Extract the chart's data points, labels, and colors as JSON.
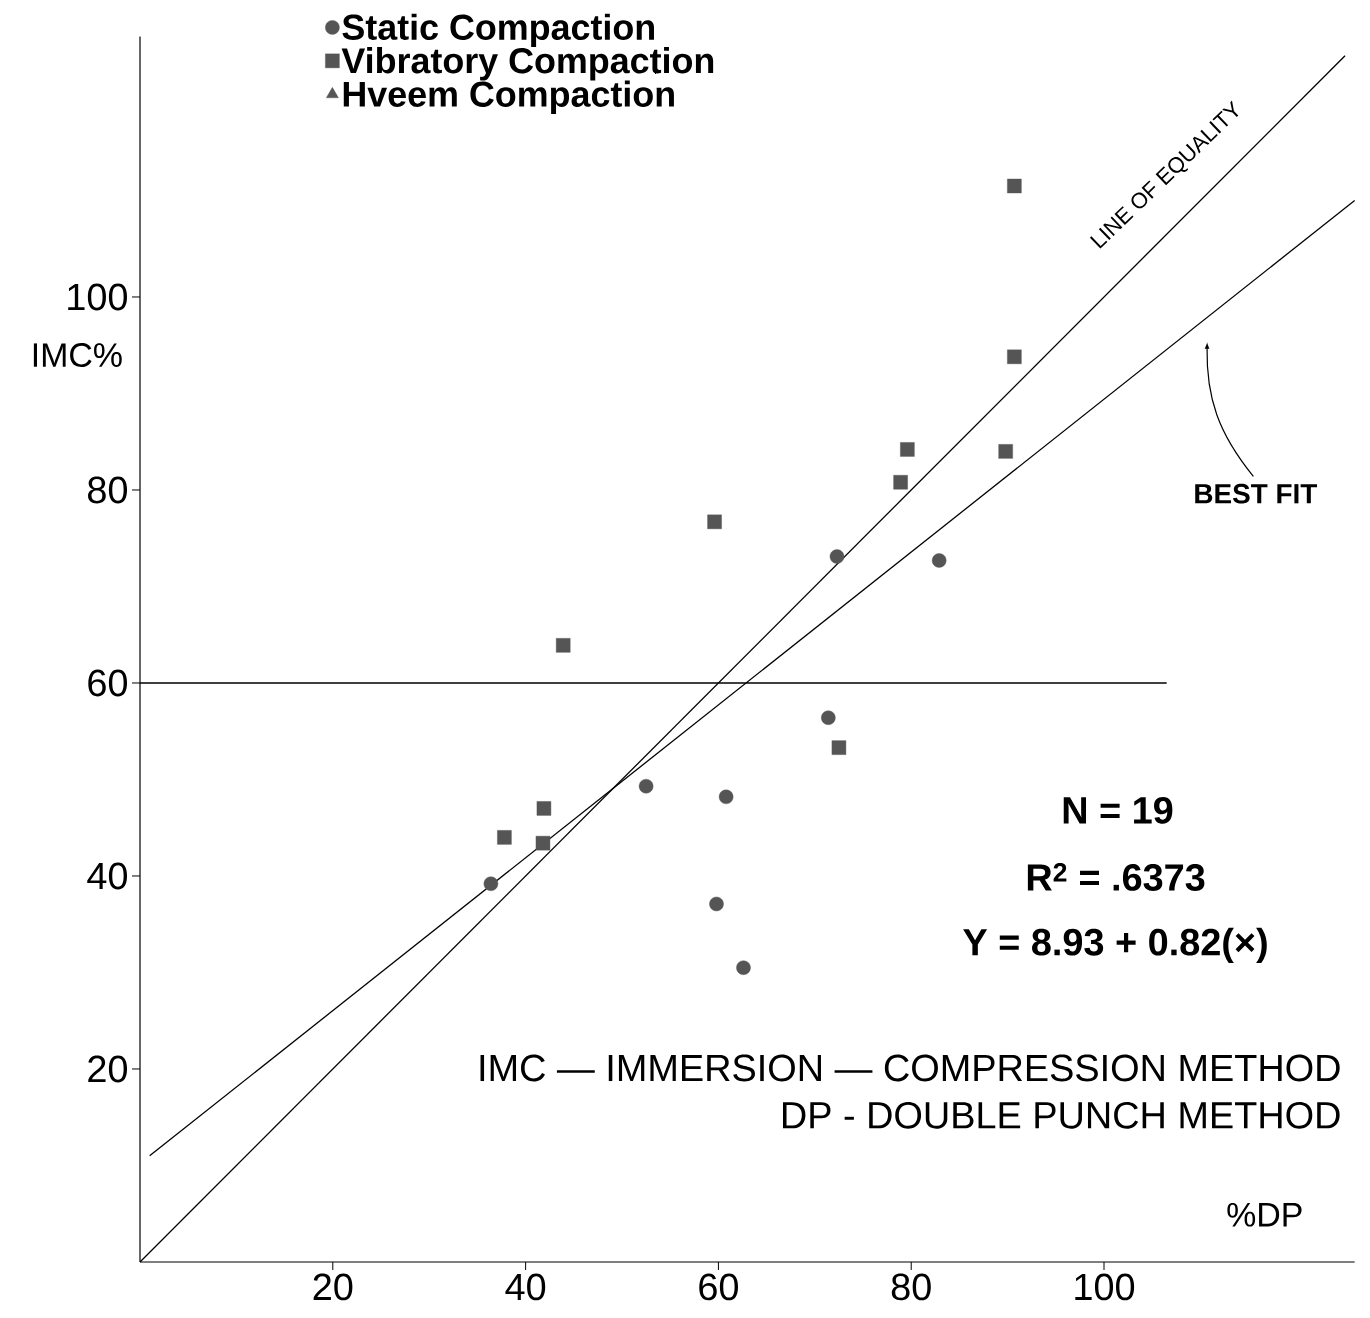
{
  "chart_data": {
    "type": "scatter",
    "xlabel": "%DP",
    "ylabel": "IMC%",
    "xlim": [
      0,
      126
    ],
    "ylim": [
      0,
      127
    ],
    "xticks": [
      20,
      40,
      60,
      80,
      100
    ],
    "yticks": [
      20,
      40,
      60,
      80,
      100
    ],
    "legend": "top",
    "line_style": "solid",
    "series": [
      {
        "name": "Static Compaction",
        "marker": "circle",
        "color": "#555555",
        "x": [
          36.4,
          52.5,
          60.8,
          59.8,
          62.6,
          71.4,
          72.3,
          82.9
        ],
        "values": [
          39.2,
          49.3,
          48.2,
          37.1,
          30.5,
          56.4,
          73.1,
          72.7
        ]
      },
      {
        "name": "Vibratory Compaction",
        "marker": "square",
        "color": "#555555",
        "x": [
          37.8,
          41.9,
          41.8,
          43.9,
          59.6,
          72.5,
          78.9,
          79.6,
          89.8,
          90.7,
          90.7
        ],
        "values": [
          44.0,
          47.0,
          43.4,
          63.9,
          76.7,
          53.3,
          80.8,
          84.2,
          84.0,
          93.8,
          111.5
        ]
      },
      {
        "name": "Hveem Compaction",
        "marker": "triangle",
        "color": "#555555"
      },
      {
        "type": "line",
        "color": "#000000",
        "x": [
          0,
          125
        ],
        "values": [
          0,
          125
        ]
      },
      {
        "type": "line",
        "color": "#000000",
        "x": [
          1,
          126
        ],
        "values": [
          11,
          110
        ]
      },
      {
        "type": "line",
        "color": "#000000",
        "x": [
          0,
          106.5
        ],
        "values": [
          60,
          60
        ]
      }
    ],
    "annotations": [
      "LINE OF EQUALITY",
      "BEST FIT",
      "N = 19",
      "R$^{2}$ = .6373",
      "Y = 8.93 + 0.82(×)",
      "IMC — IMMERSION — COMPRESSION METHOD",
      "DP  - DOUBLE PUNCH METHOD"
    ]
  }
}
